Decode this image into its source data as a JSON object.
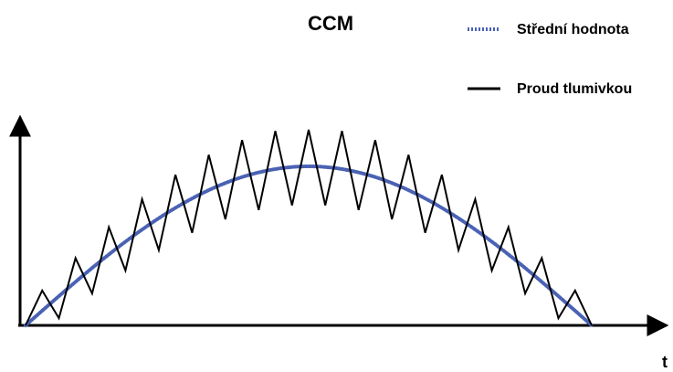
{
  "title": "CCM",
  "legend": {
    "items": [
      {
        "label": "Střední hodnota",
        "style": "dotted",
        "color": "#4a62b4"
      },
      {
        "label": "Proud tlumivkou",
        "style": "solid",
        "color": "#000000"
      }
    ]
  },
  "axis": {
    "x_label": "t",
    "color": "#000000"
  },
  "chart_data": {
    "type": "line",
    "title": "CCM",
    "xlabel": "t",
    "ylabel": "",
    "series": [
      {
        "name": "Střední hodnota",
        "shape": "half-sine",
        "amplitude": 1.0,
        "color": "#4a62b4"
      },
      {
        "name": "Proud tlumivkou",
        "shape": "triangular-ripple",
        "ripple_cycles": 17,
        "color": "#000000"
      }
    ]
  }
}
